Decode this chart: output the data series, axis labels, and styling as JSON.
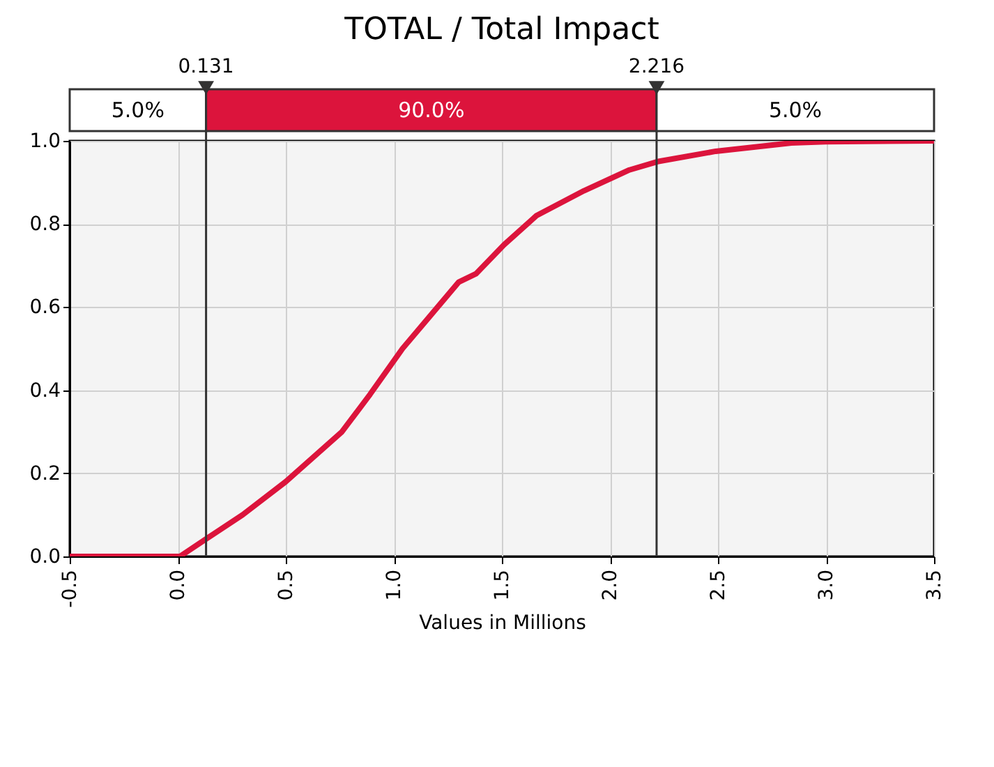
{
  "chart_data": {
    "type": "line",
    "title": "TOTAL / Total Impact",
    "xlabel": "Values in Millions",
    "series": [
      {
        "color": "#dc143c",
        "x": [
          -0.5,
          0.0,
          0.01,
          0.14,
          0.3,
          0.5,
          0.76,
          0.89,
          1.04,
          1.17,
          1.3,
          1.38,
          1.51,
          1.66,
          1.88,
          2.09,
          2.22,
          2.49,
          2.84,
          3.0,
          3.5
        ],
        "values": [
          0,
          0,
          0.0,
          0.045,
          0.1,
          0.18,
          0.3,
          0.39,
          0.5,
          0.58,
          0.66,
          0.68,
          0.75,
          0.82,
          0.88,
          0.93,
          0.95,
          0.975,
          0.995,
          0.998,
          1.0
        ]
      }
    ],
    "xlim": [
      -0.5,
      3.5
    ],
    "xticks": [
      {
        "value": -0.5,
        "label": "-0.5"
      },
      {
        "value": 0,
        "label": "0.0"
      },
      {
        "value": 0.5,
        "label": "0.5"
      },
      {
        "value": 1,
        "label": "1.0"
      },
      {
        "value": 1.5,
        "label": "1.5"
      },
      {
        "value": 2,
        "label": "2.0"
      },
      {
        "value": 2.5,
        "label": "2.5"
      },
      {
        "value": 3,
        "label": "3.0"
      },
      {
        "value": 3.5,
        "label": "3.5"
      }
    ],
    "ylim": [
      0,
      1
    ],
    "yticks": [
      {
        "value": 0,
        "label": "0.0"
      },
      {
        "value": 0.2,
        "label": "0.2"
      },
      {
        "value": 0.4,
        "label": "0.4"
      },
      {
        "value": 0.6,
        "label": "0.6"
      },
      {
        "value": 0.8,
        "label": "0.8"
      },
      {
        "value": 1,
        "label": "1.0"
      }
    ],
    "grid": true,
    "ref_lines": [
      {
        "axis": "x",
        "value": 0.131,
        "label": "0.131"
      },
      {
        "axis": "x",
        "value": 2.216,
        "label": "2.216"
      }
    ],
    "annotations": [
      "5.0%",
      "90.0%",
      "5.0%"
    ]
  }
}
